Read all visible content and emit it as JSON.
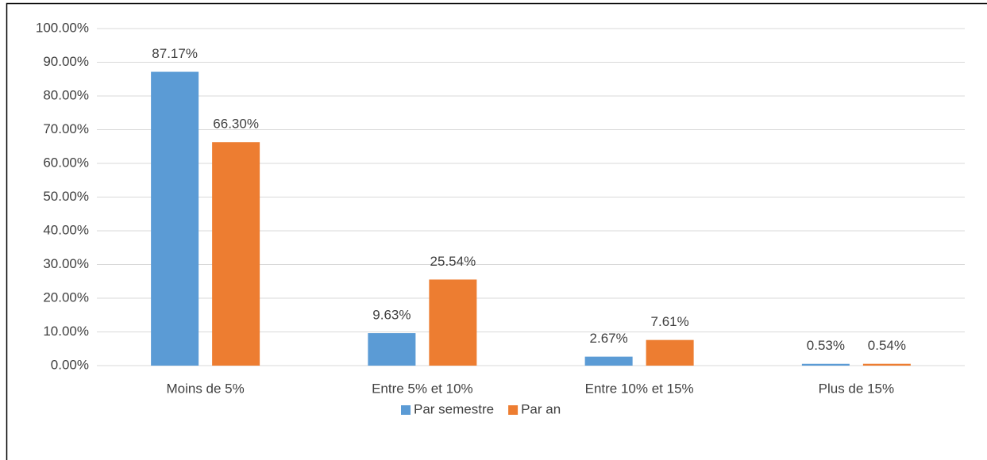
{
  "chart_data": {
    "type": "bar",
    "categories": [
      "Moins de 5%",
      "Entre 5% et 10%",
      "Entre 10% et 15%",
      "Plus de 15%"
    ],
    "series": [
      {
        "name": "Par semestre",
        "color": "#5b9bd5",
        "values": [
          87.17,
          9.63,
          2.67,
          0.53
        ],
        "value_labels": [
          "87.17%",
          "9.63%",
          "2.67%",
          "0.53%"
        ]
      },
      {
        "name": "Par an",
        "color": "#ed7d31",
        "values": [
          66.3,
          25.54,
          7.61,
          0.54
        ],
        "value_labels": [
          "66.30%",
          "25.54%",
          "7.61%",
          "0.54%"
        ]
      }
    ],
    "ylim": [
      0,
      100
    ],
    "yticks": [
      {
        "value": 0,
        "label": "0.00%"
      },
      {
        "value": 10,
        "label": "10.00%"
      },
      {
        "value": 20,
        "label": "20.00%"
      },
      {
        "value": 30,
        "label": "30.00%"
      },
      {
        "value": 40,
        "label": "40.00%"
      },
      {
        "value": 50,
        "label": "50.00%"
      },
      {
        "value": 60,
        "label": "60.00%"
      },
      {
        "value": 70,
        "label": "70.00%"
      },
      {
        "value": 80,
        "label": "80.00%"
      },
      {
        "value": 90,
        "label": "90.00%"
      },
      {
        "value": 100,
        "label": "100.00%"
      }
    ],
    "grid": true,
    "legend": "bottom"
  }
}
